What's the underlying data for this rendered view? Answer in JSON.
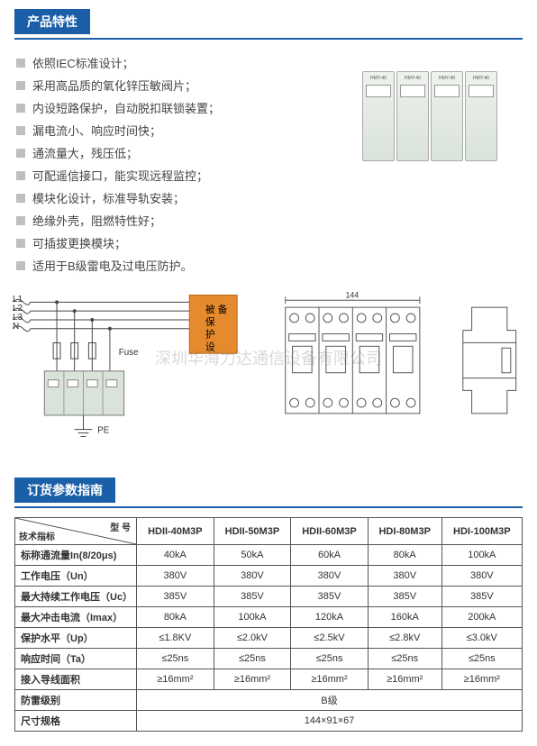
{
  "sections": {
    "features_title": "产品特性",
    "ordering_title": "订货参数指南"
  },
  "features": {
    "items": [
      "依照IEC标准设计；",
      "采用高品质的氧化锌压敏阀片；",
      "内设短路保护，自动脱扣联锁装置；",
      "漏电流小、响应时间快；",
      "通流量大，残压低；",
      "可配遥信接口，能实现远程监控；",
      "模块化设计，标准导轨安装；",
      "绝缘外壳，阻燃特性好；",
      "可插拔更换模块；",
      "适用于B级雷电及过电压防护。"
    ]
  },
  "product_module_label": "HMY-40",
  "wiring": {
    "l1": "L1",
    "l2": "L2",
    "l3": "L3",
    "n": "N",
    "fuse": "Fuse",
    "pe": "PE",
    "load": "被保护设备"
  },
  "dimensions": {
    "w": "144",
    "d_h": "144×91×67"
  },
  "watermark": "深圳华海力达通信设备有限公司",
  "table": {
    "corner_top": "型 号",
    "corner_bottom": "技术指标",
    "models": [
      "HDII-40M3P",
      "HDII-50M3P",
      "HDII-60M3P",
      "HDI-80M3P",
      "HDI-100M3P"
    ],
    "rows": [
      {
        "label": "标称通流量In(8/20μs)",
        "cells": [
          "40kA",
          "50kA",
          "60kA",
          "80kA",
          "100kA"
        ]
      },
      {
        "label": "工作电压（Un）",
        "cells": [
          "380V",
          "380V",
          "380V",
          "380V",
          "380V"
        ]
      },
      {
        "label": "最大持续工作电压（Uc）",
        "cells": [
          "385V",
          "385V",
          "385V",
          "385V",
          "385V"
        ]
      },
      {
        "label": "最大冲击电流（Imax）",
        "cells": [
          "80kA",
          "100kA",
          "120kA",
          "160kA",
          "200kA"
        ]
      },
      {
        "label": "保护水平（Up）",
        "cells": [
          "≤1.8KV",
          "≤2.0kV",
          "≤2.5kV",
          "≤2.8kV",
          "≤3.0kV"
        ]
      },
      {
        "label": "响应时间（Ta）",
        "cells": [
          "≤25ns",
          "≤25ns",
          "≤25ns",
          "≤25ns",
          "≤25ns"
        ]
      },
      {
        "label": "接入导线面积",
        "cells": [
          "≥16mm²",
          "≥16mm²",
          "≥16mm²",
          "≥16mm²",
          "≥16mm²"
        ]
      },
      {
        "label": "防雷级别",
        "span": "B级"
      },
      {
        "label": "尺寸规格",
        "span": "144×91×67"
      }
    ]
  },
  "colors": {
    "header_blue": "#1b5fa8",
    "bullet_gray": "#bfbfbf",
    "load_box": "#e68a2e",
    "module_bg": "#d9e3d9"
  }
}
